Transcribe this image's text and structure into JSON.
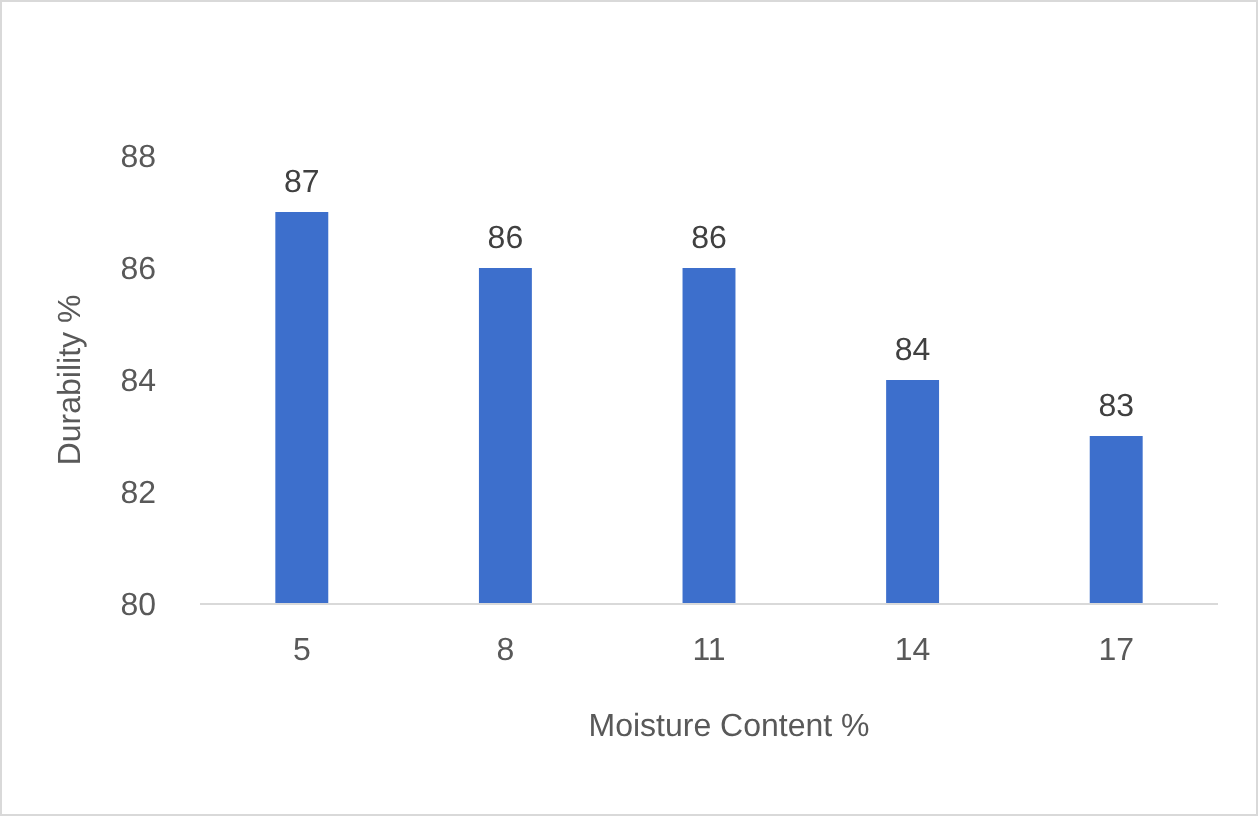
{
  "chart_data": {
    "type": "bar",
    "xlabel": "Moisture Content  %",
    "ylabel": "Durability  %",
    "categories": [
      "5",
      "8",
      "11",
      "14",
      "17"
    ],
    "values": [
      87,
      86,
      86,
      84,
      83
    ],
    "color": "#3d6fcc",
    "ylim": [
      80,
      88
    ],
    "yticks": [
      80,
      82,
      84,
      86,
      88
    ],
    "data_labels": true,
    "grid": false
  }
}
